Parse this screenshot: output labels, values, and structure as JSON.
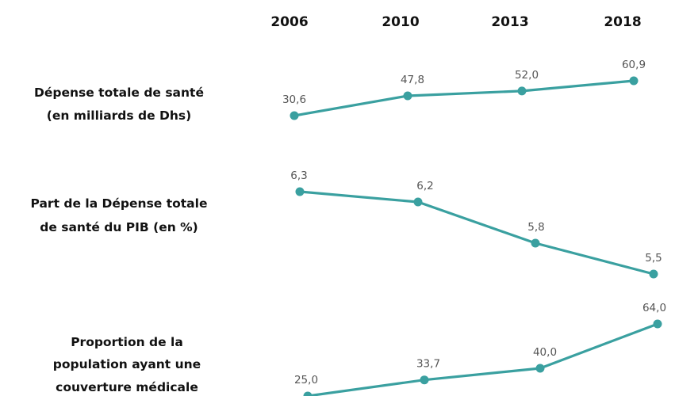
{
  "chart_data": {
    "type": "line",
    "categories": [
      "2006",
      "2010",
      "2013",
      "2018"
    ],
    "colors": {
      "line": "#3aa0a0",
      "text": "#111111",
      "value_text": "#555555"
    },
    "series": [
      {
        "name": "Dépense totale de santé (en milliards de Dhs)",
        "label_lines": [
          "Dépense totale de santé",
          "(en milliards de Dhs)"
        ],
        "values": [
          30.6,
          47.8,
          52.0,
          60.9
        ],
        "value_labels": [
          "30,6",
          "47,8",
          "52,0",
          "60,9"
        ]
      },
      {
        "name": "Part de la Dépense totale de santé du PIB (en %)",
        "label_lines": [
          "Part de la Dépense totale",
          "de santé du PIB (en %)"
        ],
        "values": [
          6.3,
          6.2,
          5.8,
          5.5
        ],
        "value_labels": [
          "6,3",
          "6,2",
          "5,8",
          "5,5"
        ]
      },
      {
        "name": "Proportion de la population ayant une couverture médicale",
        "label_lines": [
          "Proportion de la",
          "population ayant une",
          "couverture médicale"
        ],
        "values": [
          25.0,
          33.7,
          40.0,
          64.0
        ],
        "value_labels": [
          "25,0",
          "33,7",
          "40,0",
          "64,0"
        ]
      }
    ]
  }
}
